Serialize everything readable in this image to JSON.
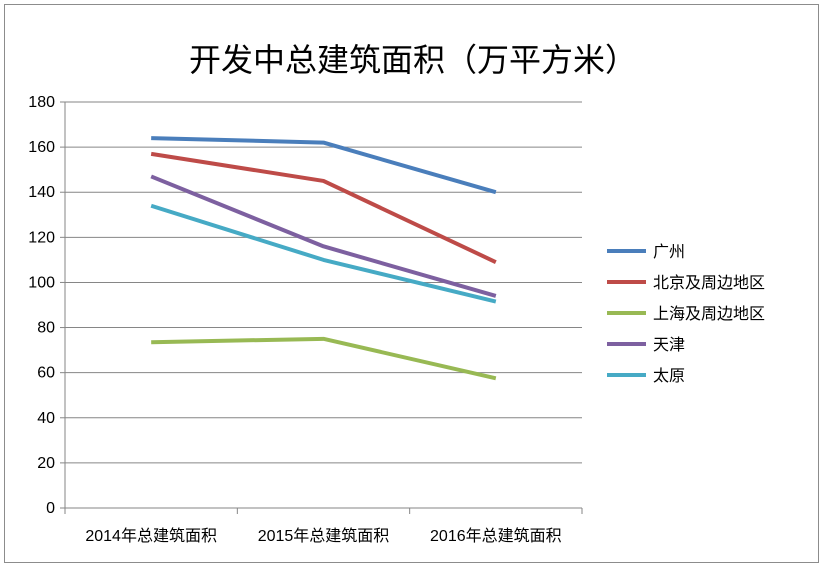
{
  "chart_data": {
    "type": "line",
    "title": "开发中总建筑面积（万平方米）",
    "categories": [
      "2014年总建筑面积",
      "2015年总建筑面积",
      "2016年总建筑面积"
    ],
    "ylim": [
      0,
      180
    ],
    "yticks": [
      0,
      20,
      40,
      60,
      80,
      100,
      120,
      140,
      160,
      180
    ],
    "grid": true,
    "legend_position": "right",
    "series": [
      {
        "name": "广州",
        "color": "#4a7ebb",
        "values": [
          164,
          162,
          140
        ]
      },
      {
        "name": "北京及周边地区",
        "color": "#be4b48",
        "values": [
          157,
          145,
          109
        ]
      },
      {
        "name": "上海及周边地区",
        "color": "#98b954",
        "values": [
          73.5,
          75,
          57.5
        ]
      },
      {
        "name": "天津",
        "color": "#7d60a0",
        "values": [
          147,
          116,
          94
        ]
      },
      {
        "name": "太原",
        "color": "#46aac5",
        "values": [
          134,
          110,
          91.5
        ]
      }
    ]
  }
}
